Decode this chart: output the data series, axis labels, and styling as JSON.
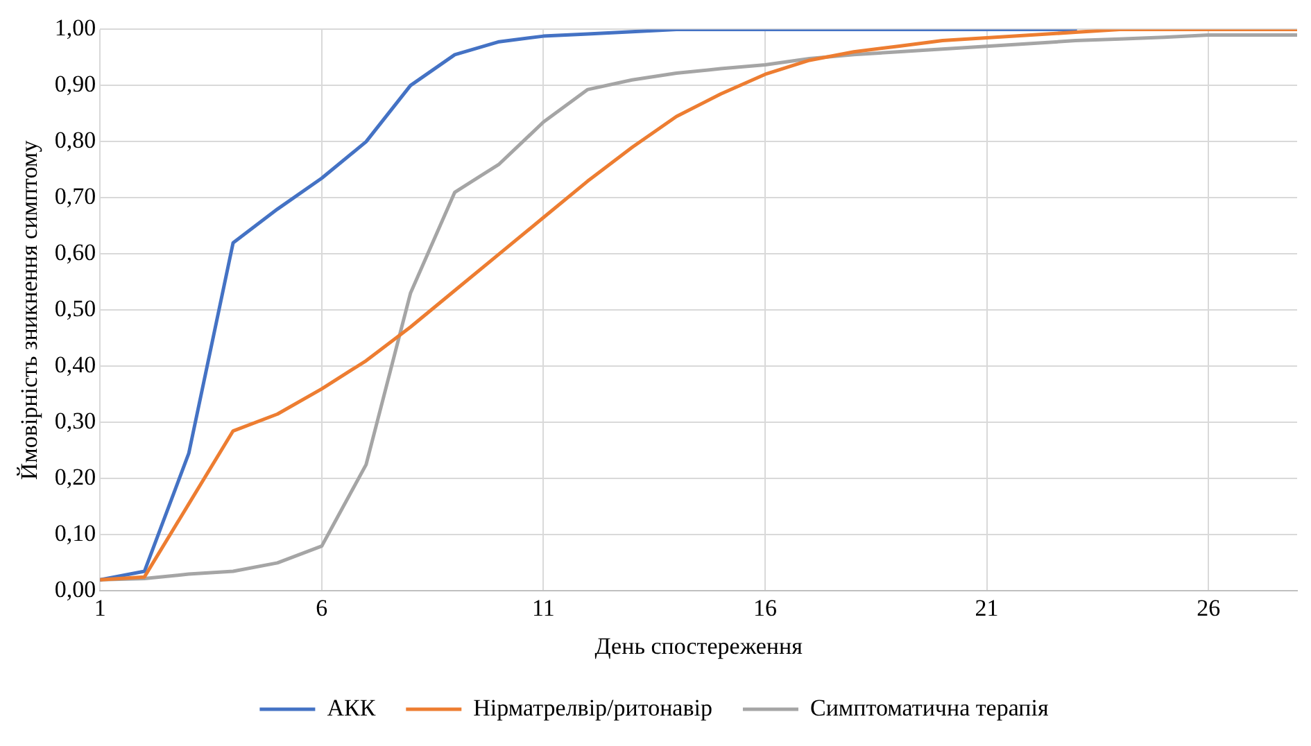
{
  "chart_data": {
    "type": "line",
    "xlabel": "День спостереження",
    "ylabel": "Ймовірність зникнення симптому",
    "x": [
      1,
      2,
      3,
      4,
      5,
      6,
      7,
      8,
      9,
      10,
      11,
      12,
      13,
      14,
      15,
      16,
      17,
      18,
      19,
      20,
      21,
      22,
      23,
      24,
      25,
      26,
      27,
      28
    ],
    "xlim": [
      1,
      28
    ],
    "xticks": [
      1,
      6,
      11,
      16,
      21,
      26
    ],
    "ylim": [
      0,
      1
    ],
    "yticks": [
      {
        "value": 0,
        "label": "0,00"
      },
      {
        "value": 0.1,
        "label": "0,10"
      },
      {
        "value": 0.2,
        "label": "0,20"
      },
      {
        "value": 0.3,
        "label": "0,30"
      },
      {
        "value": 0.4,
        "label": "0,40"
      },
      {
        "value": 0.5,
        "label": "0,50"
      },
      {
        "value": 0.6,
        "label": "0,60"
      },
      {
        "value": 0.7,
        "label": "0,70"
      },
      {
        "value": 0.8,
        "label": "0,80"
      },
      {
        "value": 0.9,
        "label": "0,90"
      },
      {
        "value": 1,
        "label": "1,00"
      }
    ],
    "grid": true,
    "legend": "bottom",
    "marker": "none",
    "line_style": "solid",
    "series": [
      {
        "name": "АКК",
        "color": "#4472c4",
        "values": [
          0.02,
          0.035,
          0.245,
          0.62,
          0.68,
          0.735,
          0.8,
          0.9,
          0.955,
          0.978,
          0.988,
          0.992,
          0.996,
          1,
          1,
          1,
          1,
          1,
          1,
          1,
          1,
          1,
          1,
          null,
          null,
          null,
          null,
          null
        ]
      },
      {
        "name": "Нірматрелвір/ритонавір",
        "color": "#ed7d31",
        "values": [
          0.02,
          0.025,
          0.155,
          0.285,
          0.315,
          0.36,
          0.41,
          0.47,
          0.535,
          0.6,
          0.665,
          0.73,
          0.79,
          0.845,
          0.885,
          0.92,
          0.945,
          0.96,
          0.97,
          0.98,
          0.985,
          0.99,
          0.995,
          1,
          1,
          1,
          1,
          1
        ]
      },
      {
        "name": "Симптоматична терапія",
        "color": "#a5a5a5",
        "values": [
          0.02,
          0.022,
          0.03,
          0.035,
          0.05,
          0.08,
          0.225,
          0.53,
          0.71,
          0.76,
          0.835,
          0.893,
          0.91,
          0.922,
          0.93,
          0.937,
          0.948,
          0.955,
          0.96,
          0.965,
          0.97,
          0.975,
          0.98,
          0.983,
          0.986,
          0.99,
          0.99,
          0.99
        ]
      }
    ]
  }
}
